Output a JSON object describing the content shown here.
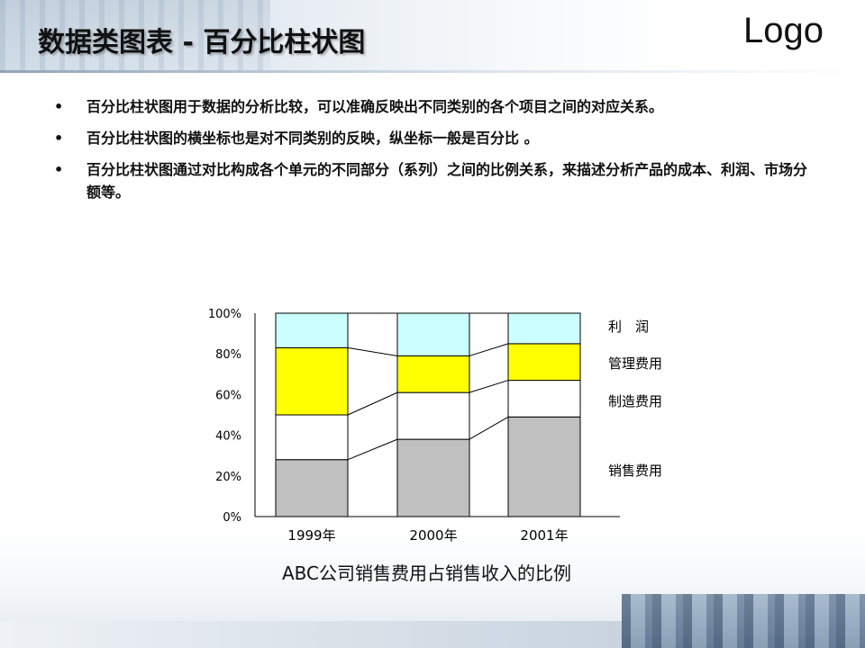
{
  "header": {
    "title": "数据类图表 - 百分比柱状图",
    "logo": "Logo"
  },
  "bullets": [
    "百分比柱状图用于数据的分析比较，可以准确反映出不同类别的各个项目之间的对应关系。",
    "百分比柱状图的横坐标也是对不同类别的反映，纵坐标一般是百分比 。",
    "百分比柱状图通过对比构成各个单元的不同部分（系列）之间的比例关系，来描述分析产品的成本、利润、市场分额等。"
  ],
  "bullet_symbol": "•",
  "chart_data": {
    "type": "bar",
    "stacked": "percent",
    "title": "ABC公司销售费用占销售收入的比例",
    "categories": [
      "1999年",
      "2000年",
      "2001年"
    ],
    "yticks": [
      "0%",
      "20%",
      "40%",
      "60%",
      "80%",
      "100%"
    ],
    "ylim": [
      0,
      100
    ],
    "series": [
      {
        "name": "销售费用",
        "color": "#c0c0c0",
        "values": [
          28,
          38,
          49
        ]
      },
      {
        "name": "制造费用",
        "color": "#ffffff",
        "values": [
          22,
          23,
          18
        ]
      },
      {
        "name": "管理费用",
        "color": "#ffff00",
        "values": [
          33,
          18,
          18
        ]
      },
      {
        "name": "利　润",
        "color": "#ccffff",
        "values": [
          17,
          21,
          15
        ]
      }
    ],
    "series_lines": true,
    "legend": "right, labels beside each segment",
    "grid": false
  }
}
